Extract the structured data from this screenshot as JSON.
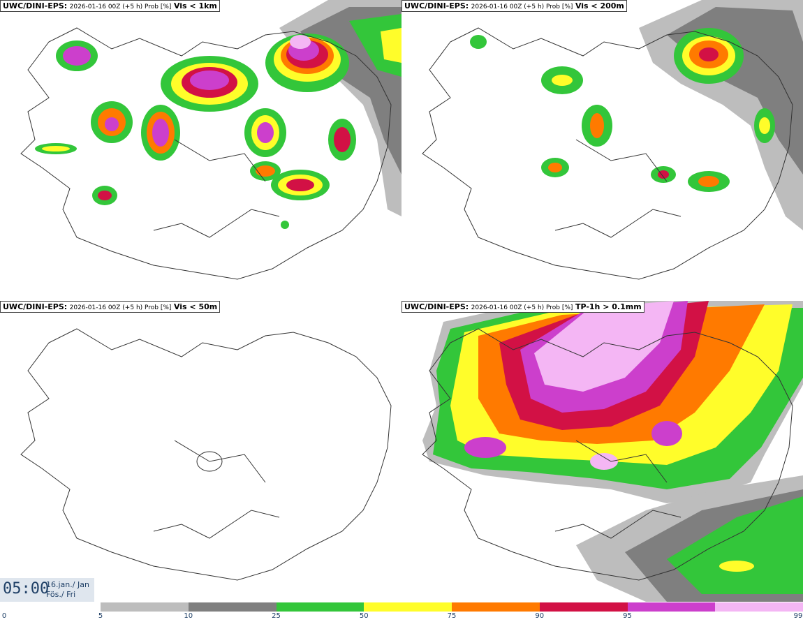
{
  "panels": [
    {
      "source": "UWC/DINI-EPS",
      "meta": "2026-01-16 00Z (+5 h) Prob [%]",
      "variable": "Vis < 1km"
    },
    {
      "source": "UWC/DINI-EPS",
      "meta": "2026-01-16 00Z (+5 h) Prob [%]",
      "variable": "Vis < 200m"
    },
    {
      "source": "UWC/DINI-EPS",
      "meta": "2026-01-16 00Z (+5 h) Prob [%]",
      "variable": "Vis < 50m"
    },
    {
      "source": "UWC/DINI-EPS",
      "meta": "2026-01-16 00Z (+5 h) Prob [%]",
      "variable": "TP-1h > 0.1mm"
    }
  ],
  "time": {
    "clock": "05:00",
    "date": "16.jan./ Jan",
    "weekday": "Fös./ Fri"
  },
  "legend": {
    "labels": [
      "0",
      "5",
      "10",
      "25",
      "50",
      "75",
      "90",
      "95",
      "99"
    ],
    "colors": [
      "#bdbdbd",
      "#7f7f7f",
      "#33c63a",
      "#fffd2a",
      "#ff7a00",
      "#d21145",
      "#cc3fcc",
      "#f4b6f4"
    ]
  },
  "colors": {
    "gray_light": "#bdbdbd",
    "gray_dark": "#7f7f7f",
    "green": "#33c63a",
    "yellow": "#fffd2a",
    "orange": "#ff7a00",
    "red": "#d21145",
    "magenta": "#cc3fcc",
    "pink": "#f4b6f4"
  }
}
